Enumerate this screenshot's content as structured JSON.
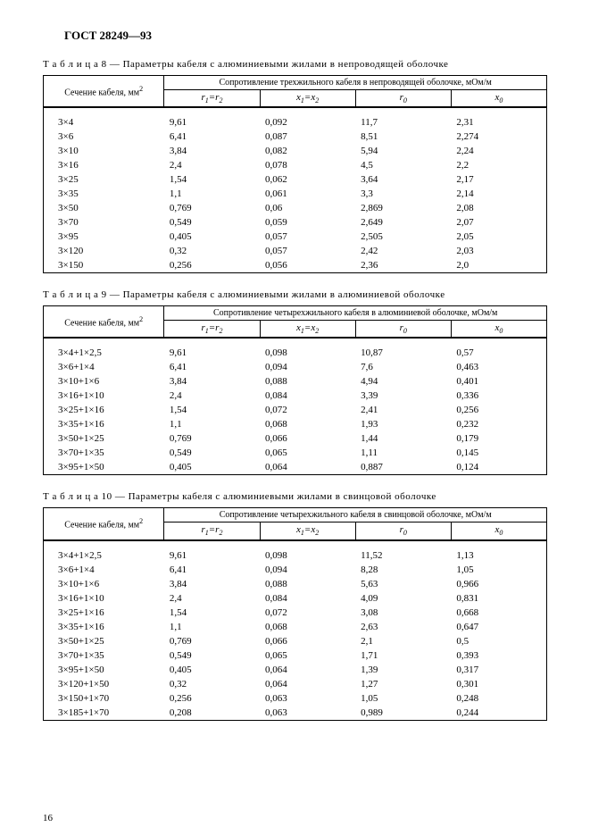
{
  "header": "ГОСТ 28249—93",
  "page_number": "16",
  "tables": {
    "t8": {
      "title_prefix": "Т а б л и ц а  8",
      "title_rest": " — Параметры кабеля с алюминиевыми жилами в непроводящей оболочке",
      "section_label_l1": "Сечение кабеля, мм",
      "section_label_sup": "2",
      "group_header": "Сопротивление трехжильного кабеля в непроводящей оболочке, мОм/м",
      "col_headers": [
        "r₁=r₂",
        "x₁=x₂",
        "r₀",
        "x₀"
      ],
      "rows": [
        [
          "3×4",
          "9,61",
          "0,092",
          "11,7",
          "2,31"
        ],
        [
          "3×6",
          "6,41",
          "0,087",
          "8,51",
          "2,274"
        ],
        [
          "3×10",
          "3,84",
          "0,082",
          "5,94",
          "2,24"
        ],
        [
          "3×16",
          "2,4",
          "0,078",
          "4,5",
          "2,2"
        ],
        [
          "3×25",
          "1,54",
          "0,062",
          "3,64",
          "2,17"
        ],
        [
          "3×35",
          "1,1",
          "0,061",
          "3,3",
          "2,14"
        ],
        [
          "3×50",
          "0,769",
          "0,06",
          "2,869",
          "2,08"
        ],
        [
          "3×70",
          "0,549",
          "0,059",
          "2,649",
          "2,07"
        ],
        [
          "3×95",
          "0,405",
          "0,057",
          "2,505",
          "2,05"
        ],
        [
          "3×120",
          "0,32",
          "0,057",
          "2,42",
          "2,03"
        ],
        [
          "3×150",
          "0,256",
          "0,056",
          "2,36",
          "2,0"
        ]
      ]
    },
    "t9": {
      "title_prefix": "Т а б л и ц а  9",
      "title_rest": " — Параметры кабеля с алюминиевыми жилами в алюминиевой оболочке",
      "section_label_l1": "Сечение кабеля, мм",
      "section_label_sup": "2",
      "group_header": "Сопротивление четырехжильного кабеля в алюминиевой оболочке, мОм/м",
      "col_headers": [
        "r₁=r₂",
        "x₁=x₂",
        "r₀",
        "x₀"
      ],
      "rows": [
        [
          "3×4+1×2,5",
          "9,61",
          "0,098",
          "10,87",
          "0,57"
        ],
        [
          "3×6+1×4",
          "6,41",
          "0,094",
          "7,6",
          "0,463"
        ],
        [
          "3×10+1×6",
          "3,84",
          "0,088",
          "4,94",
          "0,401"
        ],
        [
          "3×16+1×10",
          "2,4",
          "0,084",
          "3,39",
          "0,336"
        ],
        [
          "3×25+1×16",
          "1,54",
          "0,072",
          "2,41",
          "0,256"
        ],
        [
          "3×35+1×16",
          "1,1",
          "0,068",
          "1,93",
          "0,232"
        ],
        [
          "3×50+1×25",
          "0,769",
          "0,066",
          "1,44",
          "0,179"
        ],
        [
          "3×70+1×35",
          "0,549",
          "0,065",
          "1,11",
          "0,145"
        ],
        [
          "3×95+1×50",
          "0,405",
          "0,064",
          "0,887",
          "0,124"
        ]
      ]
    },
    "t10": {
      "title_prefix": "Т а б л и ц а  10",
      "title_rest": " — Параметры кабеля с алюминиевыми жилами в свинцовой оболочке",
      "section_label_l1": "Сечение кабеля, мм",
      "section_label_sup": "2",
      "group_header": "Сопротивление четырехжильного кабеля в свинцовой оболочке, мОм/м",
      "col_headers": [
        "r₁=r₂",
        "x₁=x₂",
        "r₀",
        "x₀"
      ],
      "rows": [
        [
          "3×4+1×2,5",
          "9,61",
          "0,098",
          "11,52",
          "1,13"
        ],
        [
          "3×6+1×4",
          "6,41",
          "0,094",
          "8,28",
          "1,05"
        ],
        [
          "3×10+1×6",
          "3,84",
          "0,088",
          "5,63",
          "0,966"
        ],
        [
          "3×16+1×10",
          "2,4",
          "0,084",
          "4,09",
          "0,831"
        ],
        [
          "3×25+1×16",
          "1,54",
          "0,072",
          "3,08",
          "0,668"
        ],
        [
          "3×35+1×16",
          "1,1",
          "0,068",
          "2,63",
          "0,647"
        ],
        [
          "3×50+1×25",
          "0,769",
          "0,066",
          "2,1",
          "0,5"
        ],
        [
          "3×70+1×35",
          "0,549",
          "0,065",
          "1,71",
          "0,393"
        ],
        [
          "3×95+1×50",
          "0,405",
          "0,064",
          "1,39",
          "0,317"
        ],
        [
          "3×120+1×50",
          "0,32",
          "0,064",
          "1,27",
          "0,301"
        ],
        [
          "3×150+1×70",
          "0,256",
          "0,063",
          "1,05",
          "0,248"
        ],
        [
          "3×185+1×70",
          "0,208",
          "0,063",
          "0,989",
          "0,244"
        ]
      ]
    }
  }
}
